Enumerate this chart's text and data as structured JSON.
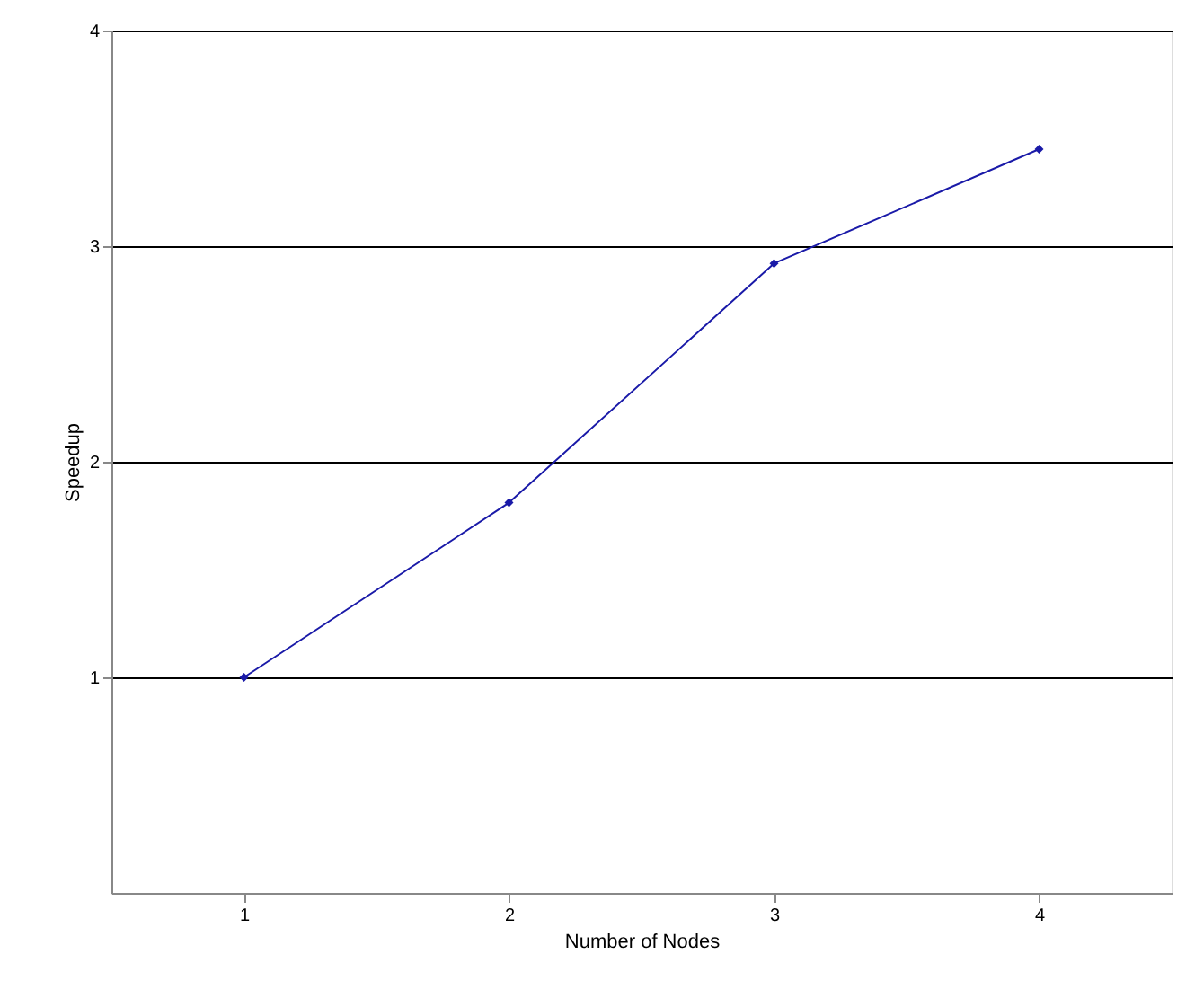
{
  "chart_data": {
    "type": "line",
    "xlabel": "Number of Nodes",
    "ylabel": "Speedup",
    "x": [
      1,
      2,
      3,
      4
    ],
    "series": [
      {
        "color": "#1a1aa8",
        "values": [
          1.0,
          1.81,
          2.92,
          3.45
        ]
      }
    ],
    "xlim": [
      0.5,
      4.5
    ],
    "ylim": [
      0,
      4
    ],
    "xticks": [
      1,
      2,
      3,
      4
    ],
    "yticks": [
      1,
      2,
      3,
      4
    ],
    "grid": "y",
    "marker": "diamond",
    "line_style": "solid"
  }
}
